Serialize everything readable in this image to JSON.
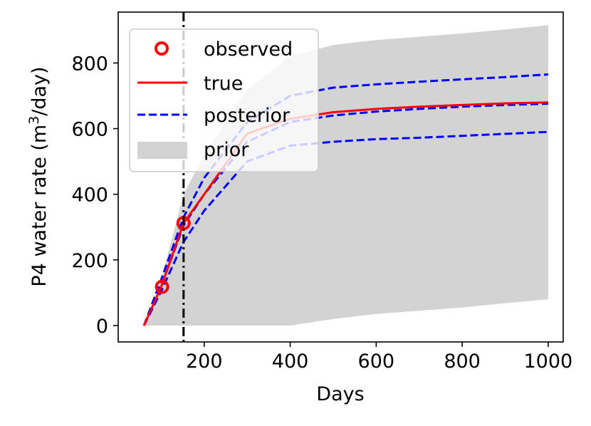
{
  "chart_data": {
    "type": "line",
    "xlabel": "Days",
    "ylabel_parts": {
      "before": "P4 water rate (m",
      "sup": "3",
      "after": "/day)"
    },
    "xlim": [
      0,
      1035
    ],
    "ylim": [
      -50,
      955
    ],
    "xticks": [
      200,
      400,
      600,
      800,
      1000
    ],
    "yticks": [
      0,
      200,
      400,
      600,
      800
    ],
    "xtick_labels": [
      "200",
      "400",
      "600",
      "800",
      "1000"
    ],
    "ytick_labels": [
      "0",
      "200",
      "400",
      "600",
      "800"
    ],
    "grid": false,
    "legend_position": "top-left",
    "history_end_x": 152,
    "prior_band": {
      "name": "prior",
      "color": "#d3d3d3",
      "x": [
        60,
        100,
        152,
        200,
        300,
        400,
        500,
        600,
        700,
        800,
        900,
        1000
      ],
      "lower": [
        0,
        0,
        0,
        0,
        0,
        0,
        20,
        35,
        45,
        55,
        68,
        80
      ],
      "upper": [
        0,
        140,
        400,
        520,
        720,
        820,
        855,
        870,
        880,
        890,
        902,
        915
      ]
    },
    "series": [
      {
        "name": "posterior",
        "color": "#0000ff",
        "style": "dashed",
        "x": [
          60,
          100,
          152,
          200,
          300,
          400,
          500,
          600,
          700,
          800,
          900,
          1000
        ],
        "values": [
          0,
          140,
          330,
          450,
          620,
          700,
          725,
          735,
          743,
          750,
          757,
          765
        ]
      },
      {
        "name": "posterior",
        "color": "#0000ff",
        "style": "dashed",
        "x": [
          60,
          100,
          152,
          200,
          300,
          400,
          500,
          600,
          700,
          800,
          900,
          1000
        ],
        "values": [
          0,
          120,
          305,
          400,
          560,
          620,
          640,
          652,
          660,
          667,
          672,
          676
        ]
      },
      {
        "name": "posterior",
        "color": "#0000ff",
        "style": "dashed",
        "x": [
          60,
          100,
          152,
          200,
          300,
          400,
          500,
          600,
          700,
          800,
          900,
          1000
        ],
        "values": [
          0,
          105,
          255,
          350,
          500,
          548,
          560,
          568,
          572,
          578,
          584,
          590
        ]
      },
      {
        "name": "true",
        "color": "#ff0000",
        "style": "solid",
        "x": [
          60,
          100,
          152,
          200,
          300,
          400,
          500,
          600,
          700,
          800,
          900,
          1000
        ],
        "values": [
          0,
          118,
          312,
          400,
          585,
          630,
          650,
          660,
          667,
          672,
          677,
          680
        ]
      }
    ],
    "observed": {
      "name": "observed",
      "color": "#ff0000",
      "x": [
        102,
        152
      ],
      "values": [
        118,
        312
      ]
    },
    "legend": {
      "items": [
        {
          "label": "observed",
          "kind": "marker",
          "color": "#ff0000"
        },
        {
          "label": "true",
          "kind": "solid",
          "color": "#ff0000"
        },
        {
          "label": "posterior",
          "kind": "dashed",
          "color": "#0000ff"
        },
        {
          "label": "prior",
          "kind": "patch",
          "color": "#d3d3d3"
        }
      ]
    }
  }
}
